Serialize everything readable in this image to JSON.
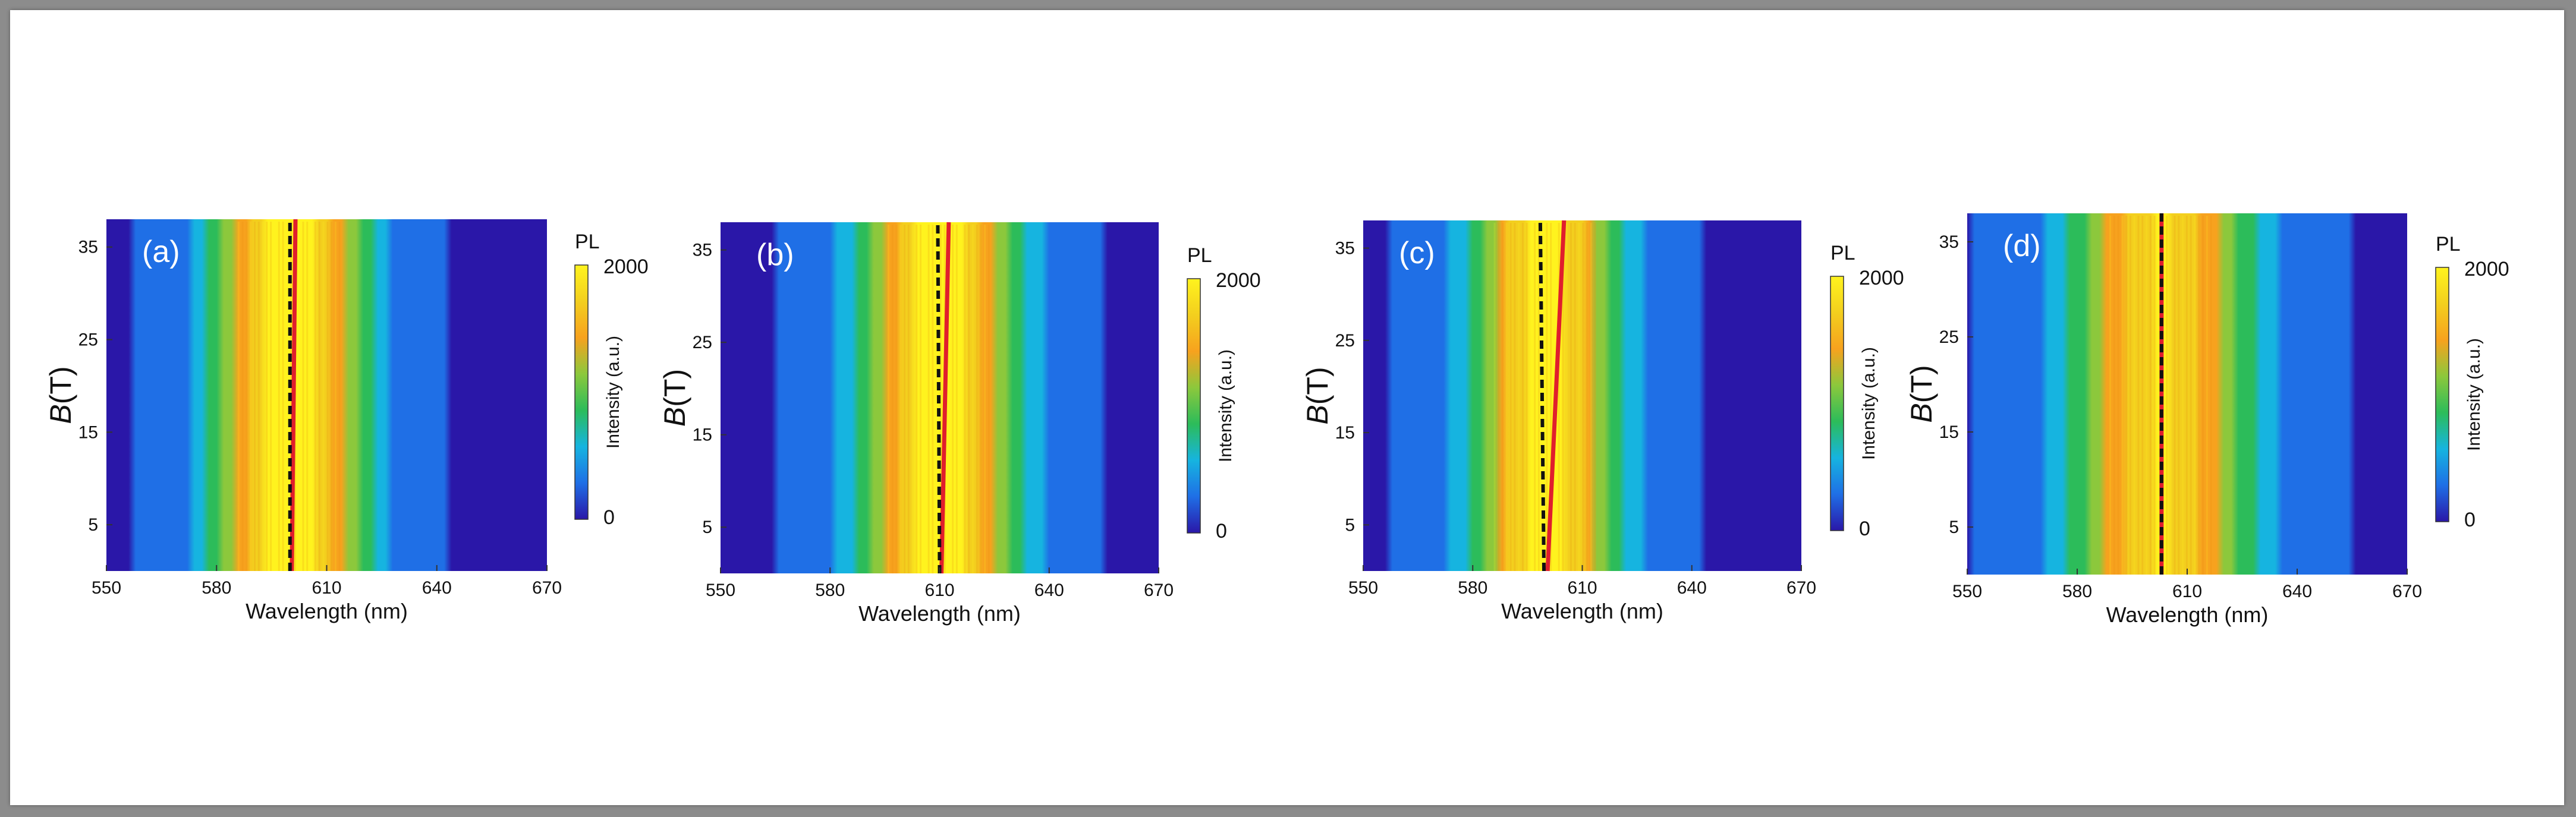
{
  "figure": {
    "colors": {
      "frame_background": "#8c8c8c",
      "page_background": "#ffffff",
      "colormap": [
        "#2a17a8",
        "#1f6fe6",
        "#16b4e0",
        "#2cbc5a",
        "#8cc83c",
        "#f7a21e",
        "#f3cf1e",
        "#fff31e"
      ],
      "fit_line_red": "#e01e2d",
      "guide_line_black": "#111111",
      "panel_label": "#ffffff"
    }
  },
  "chart_data": [
    {
      "type": "heatmap",
      "panel_label": "(a)",
      "xlabel": "Wavelength (nm)",
      "ylabel_var": "B",
      "ylabel_unit": "(T)",
      "xlim": [
        550,
        670
      ],
      "ylim": [
        0,
        38
      ],
      "xticks": [
        550,
        580,
        610,
        640,
        670
      ],
      "yticks": [
        5,
        15,
        25,
        35
      ],
      "colorbar": {
        "title": "PL",
        "label": "Intensity (a.u.)",
        "min": 0,
        "max": 2000,
        "ticks": [
          0,
          2000
        ]
      },
      "peak_center_nm": 600,
      "peak_intensity": 2000,
      "peak_width_nm": 20,
      "overlay_lines": [
        {
          "style": "solid",
          "color": "red",
          "x_at_ymin": 600.5,
          "x_at_ymax": 601.5
        },
        {
          "style": "dashed",
          "color": "black",
          "x_at_ymin": 600,
          "x_at_ymax": 600
        }
      ]
    },
    {
      "type": "heatmap",
      "panel_label": "(b)",
      "xlabel": "Wavelength (nm)",
      "ylabel_var": "B",
      "ylabel_unit": "(T)",
      "xlim": [
        550,
        670
      ],
      "ylim": [
        0,
        38
      ],
      "xticks": [
        550,
        580,
        610,
        640,
        670
      ],
      "yticks": [
        5,
        15,
        25,
        35
      ],
      "colorbar": {
        "title": "PL",
        "label": "Intensity (a.u.)",
        "min": 0,
        "max": 2000,
        "ticks": [
          0,
          2000
        ]
      },
      "peak_center_nm": 610,
      "peak_intensity": 1900,
      "peak_width_nm": 21,
      "overlay_lines": [
        {
          "style": "solid",
          "color": "red",
          "x_at_ymin": 610.5,
          "x_at_ymax": 612.5
        },
        {
          "style": "dashed",
          "color": "black",
          "x_at_ymin": 610,
          "x_at_ymax": 609.5
        }
      ]
    },
    {
      "type": "heatmap",
      "panel_label": "(c)",
      "xlabel": "Wavelength (nm)",
      "ylabel_var": "B",
      "ylabel_unit": "(T)",
      "xlim": [
        550,
        670
      ],
      "ylim": [
        0,
        38
      ],
      "xticks": [
        550,
        580,
        610,
        640,
        670
      ],
      "yticks": [
        5,
        15,
        25,
        35
      ],
      "colorbar": {
        "title": "PL",
        "label": "Intensity (a.u.)",
        "min": 0,
        "max": 2000,
        "ticks": [
          0,
          2000
        ]
      },
      "peak_center_nm": 600,
      "peak_intensity": 1900,
      "peak_width_nm": 20,
      "overlay_lines": [
        {
          "style": "solid",
          "color": "red",
          "x_at_ymin": 600.5,
          "x_at_ymax": 605
        },
        {
          "style": "dashed",
          "color": "black",
          "x_at_ymin": 599.5,
          "x_at_ymax": 598.5
        }
      ]
    },
    {
      "type": "heatmap",
      "panel_label": "(d)",
      "xlabel": "Wavelength (nm)",
      "ylabel_var": "B",
      "ylabel_unit": "(T)",
      "xlim": [
        550,
        670
      ],
      "ylim": [
        0,
        38
      ],
      "xticks": [
        550,
        580,
        610,
        640,
        670
      ],
      "yticks": [
        5,
        15,
        25,
        35
      ],
      "colorbar": {
        "title": "PL",
        "label": "Intensity (a.u.)",
        "min": 0,
        "max": 2000,
        "ticks": [
          0,
          2000
        ]
      },
      "peak_center_nm": 603,
      "peak_intensity": 1750,
      "peak_width_nm": 25,
      "overlay_lines": [
        {
          "style": "solid",
          "color": "red",
          "x_at_ymin": 603,
          "x_at_ymax": 603
        },
        {
          "style": "dashed",
          "color": "black",
          "x_at_ymin": 603,
          "x_at_ymax": 603
        }
      ]
    }
  ]
}
